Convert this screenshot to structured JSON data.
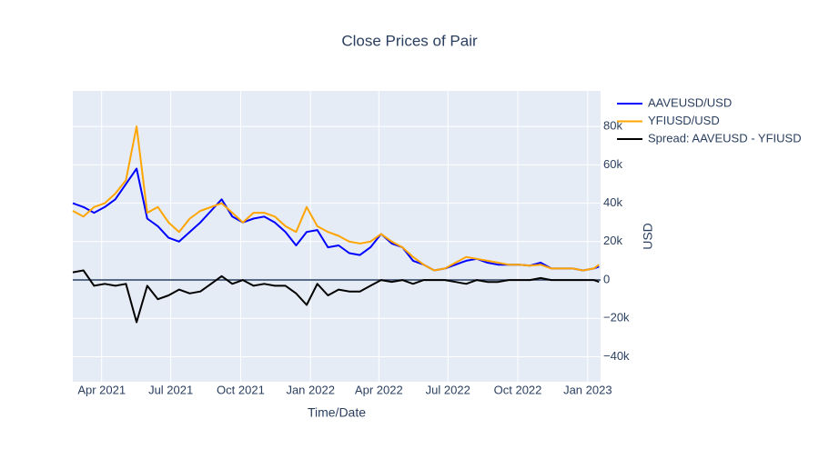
{
  "chart_data": {
    "type": "line",
    "title": "Close Prices of Pair",
    "x_label": "Time/Date",
    "y_label": "USD",
    "x": [
      "2021-02-22",
      "2021-03-08",
      "2021-03-22",
      "2021-04-05",
      "2021-04-19",
      "2021-05-03",
      "2021-05-17",
      "2021-05-31",
      "2021-06-14",
      "2021-06-28",
      "2021-07-12",
      "2021-07-26",
      "2021-08-09",
      "2021-08-23",
      "2021-09-06",
      "2021-09-20",
      "2021-10-04",
      "2021-10-18",
      "2021-11-01",
      "2021-11-15",
      "2021-11-29",
      "2021-12-13",
      "2021-12-27",
      "2022-01-10",
      "2022-01-24",
      "2022-02-07",
      "2022-02-21",
      "2022-03-07",
      "2022-03-21",
      "2022-04-04",
      "2022-04-18",
      "2022-05-02",
      "2022-05-16",
      "2022-05-30",
      "2022-06-13",
      "2022-06-27",
      "2022-07-11",
      "2022-07-25",
      "2022-08-08",
      "2022-08-22",
      "2022-09-05",
      "2022-09-19",
      "2022-10-03",
      "2022-10-17",
      "2022-10-31",
      "2022-11-14",
      "2022-11-28",
      "2022-12-12",
      "2022-12-26",
      "2023-01-09",
      "2023-01-16"
    ],
    "series": [
      {
        "name": "AAVEUSD/USD",
        "color": "#0000ff",
        "values": [
          40000,
          38000,
          35000,
          38000,
          42000,
          50000,
          58000,
          32000,
          28000,
          22000,
          20000,
          25000,
          30000,
          36000,
          42000,
          33000,
          30000,
          32000,
          33000,
          30000,
          25000,
          18000,
          25000,
          26000,
          17000,
          18000,
          14000,
          13000,
          17000,
          24000,
          19000,
          17000,
          10000,
          8000,
          5000,
          6000,
          8000,
          10000,
          11000,
          9000,
          8000,
          8000,
          8000,
          7500,
          9000,
          6000,
          6000,
          6000,
          5000,
          6000,
          7000
        ]
      },
      {
        "name": "YFIUSD/USD",
        "color": "#ffa500",
        "values": [
          36000,
          33000,
          38000,
          40000,
          45000,
          52000,
          80000,
          35000,
          38000,
          30000,
          25000,
          32000,
          36000,
          38000,
          40000,
          35000,
          30000,
          35000,
          35000,
          33000,
          28000,
          25000,
          38000,
          28000,
          25000,
          23000,
          20000,
          19000,
          20000,
          24000,
          20000,
          17000,
          12000,
          8000,
          5000,
          6000,
          9000,
          12000,
          11000,
          10000,
          9000,
          8000,
          8000,
          7500,
          8000,
          6000,
          6000,
          6000,
          5000,
          6000,
          8000
        ]
      },
      {
        "name": "Spread: AAVEUSD - YFIUSD",
        "color": "#000000",
        "values": [
          4000,
          5000,
          -3000,
          -2000,
          -3000,
          -2000,
          -22000,
          -3000,
          -10000,
          -8000,
          -5000,
          -7000,
          -6000,
          -2000,
          2000,
          -2000,
          0,
          -3000,
          -2000,
          -3000,
          -3000,
          -7000,
          -13000,
          -2000,
          -8000,
          -5000,
          -6000,
          -6000,
          -3000,
          0,
          -1000,
          0,
          -2000,
          0,
          0,
          0,
          -1000,
          -2000,
          0,
          -1000,
          -1000,
          0,
          0,
          0,
          1000,
          0,
          0,
          0,
          0,
          0,
          -1000
        ]
      }
    ],
    "xlim": [
      "2021-02-22",
      "2023-01-18"
    ],
    "xticks": [
      {
        "value": "2021-04-01",
        "label": "Apr 2021"
      },
      {
        "value": "2021-07-01",
        "label": "Jul 2021"
      },
      {
        "value": "2021-10-01",
        "label": "Oct 2021"
      },
      {
        "value": "2022-01-01",
        "label": "Jan 2022"
      },
      {
        "value": "2022-04-01",
        "label": "Apr 2022"
      },
      {
        "value": "2022-07-01",
        "label": "Jul 2022"
      },
      {
        "value": "2022-10-01",
        "label": "Oct 2022"
      },
      {
        "value": "2023-01-01",
        "label": "Jan 2023"
      }
    ],
    "ylim": [
      -53000,
      98500
    ],
    "yticks": [
      {
        "value": -40000,
        "label": "−40k"
      },
      {
        "value": -20000,
        "label": "−20k"
      },
      0,
      {
        "value": 20000,
        "label": "20k"
      },
      {
        "value": 40000,
        "label": "40k"
      },
      {
        "value": 60000,
        "label": "60k"
      },
      {
        "value": 80000,
        "label": "80k"
      }
    ],
    "grid": true,
    "legend": "right"
  }
}
